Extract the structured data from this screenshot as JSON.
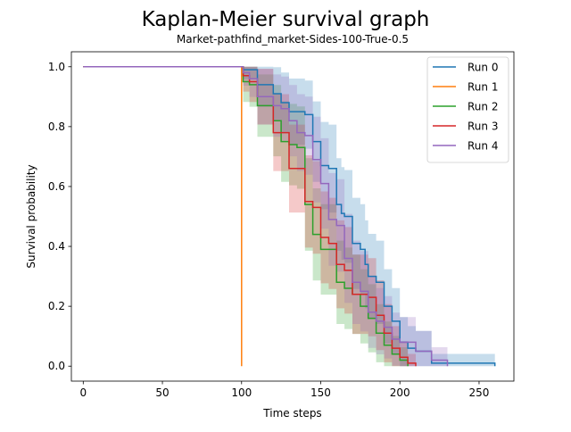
{
  "chart_data": {
    "type": "line",
    "title": "Kaplan-Meier survival graph",
    "subtitle": "Market-pathfind_market-Sides-100-True-0.5",
    "xlabel": "Time steps",
    "ylabel": "Survival probability",
    "xlim": [
      -7.5,
      272
    ],
    "ylim": [
      -0.05,
      1.05
    ],
    "xticks": [
      0,
      50,
      100,
      150,
      200,
      250
    ],
    "yticks": [
      0.0,
      0.2,
      0.4,
      0.6,
      0.8,
      1.0
    ],
    "xtick_labels": [
      "0",
      "50",
      "100",
      "150",
      "200",
      "250"
    ],
    "ytick_labels": [
      "0.0",
      "0.2",
      "0.4",
      "0.6",
      "0.8",
      "1.0"
    ],
    "legend_position": "top-right",
    "series": [
      {
        "name": "Run 0",
        "color": "#1f77b4",
        "x": [
          0,
          100,
          101,
          110,
          120,
          125,
          130,
          140,
          145,
          150,
          155,
          160,
          163,
          165,
          170,
          175,
          178,
          180,
          185,
          190,
          195,
          200,
          205,
          210,
          220,
          260
        ],
        "y": [
          1.0,
          1.0,
          0.99,
          0.94,
          0.91,
          0.88,
          0.85,
          0.84,
          0.75,
          0.67,
          0.66,
          0.54,
          0.51,
          0.5,
          0.41,
          0.39,
          0.34,
          0.3,
          0.28,
          0.2,
          0.15,
          0.08,
          0.06,
          0.05,
          0.01,
          0.0
        ]
      },
      {
        "name": "Run 1",
        "color": "#ff7f0e",
        "x": [
          0,
          99.9,
          100
        ],
        "y": [
          1.0,
          1.0,
          0.0
        ]
      },
      {
        "name": "Run 2",
        "color": "#2ca02c",
        "x": [
          0,
          100,
          101,
          105,
          110,
          120,
          125,
          130,
          135,
          140,
          145,
          150,
          160,
          165,
          170,
          175,
          180,
          185,
          190,
          195,
          200,
          205
        ],
        "y": [
          1.0,
          1.0,
          0.95,
          0.94,
          0.87,
          0.82,
          0.75,
          0.74,
          0.73,
          0.54,
          0.44,
          0.39,
          0.28,
          0.26,
          0.24,
          0.2,
          0.16,
          0.11,
          0.07,
          0.04,
          0.02,
          0.0
        ]
      },
      {
        "name": "Run 3",
        "color": "#d62728",
        "x": [
          0,
          100,
          101,
          105,
          110,
          120,
          130,
          140,
          145,
          150,
          155,
          160,
          165,
          170,
          180,
          185,
          190,
          195,
          200,
          205,
          210
        ],
        "y": [
          1.0,
          1.0,
          0.97,
          0.95,
          0.9,
          0.78,
          0.66,
          0.55,
          0.53,
          0.43,
          0.41,
          0.34,
          0.32,
          0.24,
          0.23,
          0.17,
          0.11,
          0.06,
          0.03,
          0.01,
          0.0
        ]
      },
      {
        "name": "Run 4",
        "color": "#9467bd",
        "x": [
          0,
          100,
          101,
          105,
          110,
          120,
          125,
          130,
          135,
          140,
          145,
          150,
          155,
          160,
          165,
          170,
          175,
          180,
          185,
          190,
          195,
          200,
          210,
          220,
          230
        ],
        "y": [
          1.0,
          1.0,
          0.98,
          0.96,
          0.9,
          0.87,
          0.86,
          0.82,
          0.78,
          0.77,
          0.69,
          0.61,
          0.49,
          0.47,
          0.36,
          0.28,
          0.25,
          0.18,
          0.15,
          0.13,
          0.09,
          0.08,
          0.05,
          0.02,
          0.0
        ]
      }
    ]
  }
}
